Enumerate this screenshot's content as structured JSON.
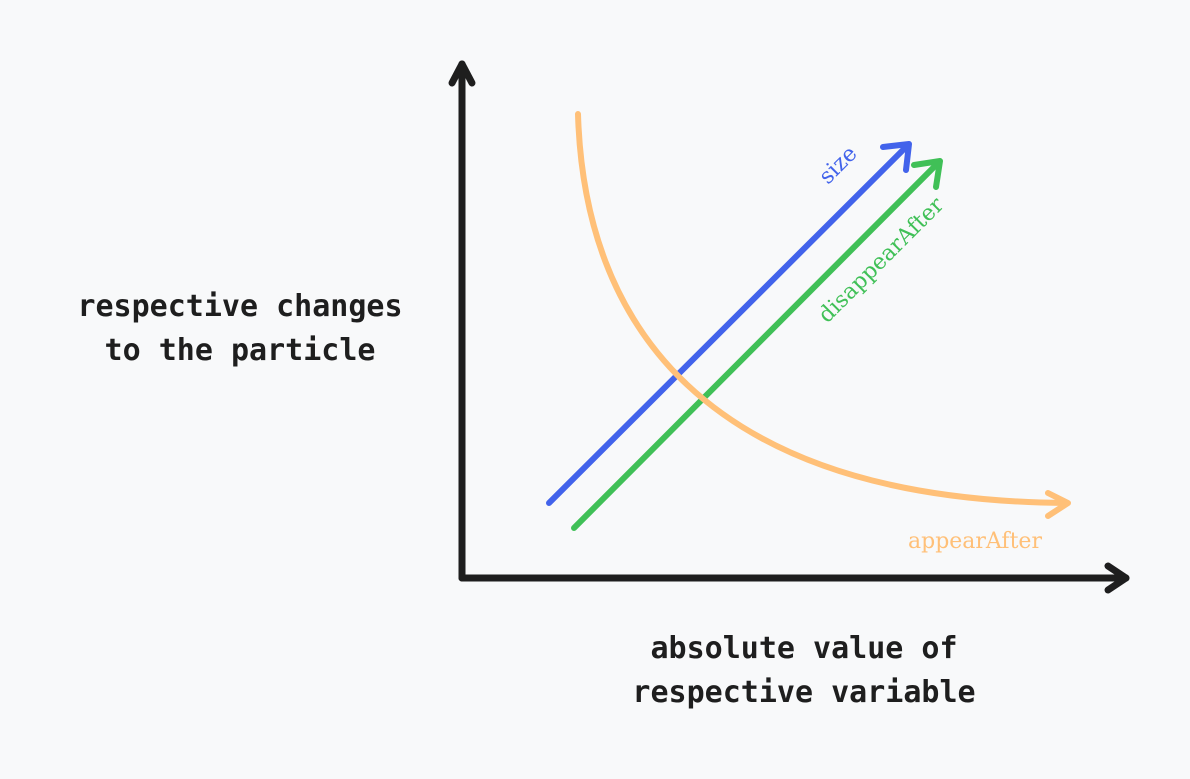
{
  "axes": {
    "y_label_lines": [
      "respective changes",
      "to the particle"
    ],
    "x_label_lines": [
      "absolute value of",
      "respective variable"
    ]
  },
  "curves": {
    "size": {
      "label": "size",
      "color": "#4263eb"
    },
    "disappearAfter": {
      "label": "disappearAfter",
      "color": "#40c057"
    },
    "appearAfter": {
      "label": "appearAfter",
      "color": "#ffc078"
    }
  },
  "colors": {
    "axis": "#1e1e1e",
    "background": "#f8f9fa"
  }
}
